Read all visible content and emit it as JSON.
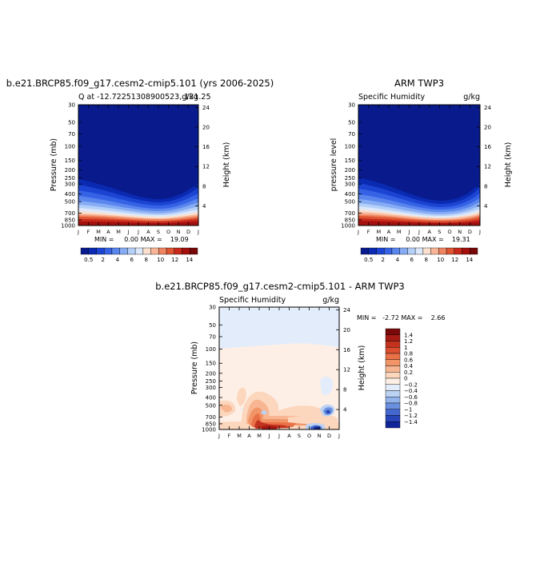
{
  "chart_data": [
    {
      "type": "heatmap",
      "title": "b.e21.BRCP85.f09_g17.cesm2-cmip5.101 (yrs 2006-2025)",
      "subtitle_left": "Q  at -12.72251308900523, 131.25",
      "subtitle_right": "g/kg",
      "ylabel_left": "Pressure (mb)",
      "ylabel_right": "Height (km)",
      "x_ticks": [
        "J",
        "F",
        "M",
        "A",
        "M",
        "J",
        "J",
        "A",
        "S",
        "O",
        "N",
        "D",
        "J"
      ],
      "y_ticks": [
        "30",
        "50",
        "70",
        "100",
        "150",
        "200",
        "250",
        "300",
        "400",
        "500",
        "700",
        "850",
        "1000"
      ],
      "height_ticks": [
        "24",
        "20",
        "16",
        "12",
        "8",
        "4"
      ],
      "min_max": "MIN =     0.00 MAX =    19.09",
      "min": 0.0,
      "max": 19.09,
      "colorbar_labels": [
        "0.5",
        "2",
        "4",
        "6",
        "8",
        "10",
        "12",
        "14"
      ],
      "colorbar_colors": [
        "#081a8c",
        "#0a2ab2",
        "#1c44d2",
        "#3663e6",
        "#5a86ee",
        "#86acf4",
        "#b4cff8",
        "#dde9fb",
        "#fbe0cf",
        "#f7b598",
        "#ef8661",
        "#e05532",
        "#c72a1c",
        "#a3100e",
        "#770707"
      ]
    },
    {
      "type": "heatmap",
      "title": "ARM TWP3",
      "subtitle_left": "Specific Humidity",
      "subtitle_right": "g/kg",
      "ylabel_left": "pressure level",
      "ylabel_right": "Height (km)",
      "x_ticks": [
        "J",
        "F",
        "M",
        "A",
        "M",
        "J",
        "J",
        "A",
        "S",
        "O",
        "N",
        "D",
        "J"
      ],
      "y_ticks": [
        "30",
        "50",
        "70",
        "100",
        "150",
        "200",
        "250",
        "300",
        "400",
        "500",
        "700",
        "850",
        "1000"
      ],
      "height_ticks": [
        "24",
        "20",
        "16",
        "12",
        "8",
        "4"
      ],
      "min_max": "MIN =     0.00 MAX =    19.31",
      "min": 0.0,
      "max": 19.31,
      "colorbar_labels": [
        "0.5",
        "2",
        "4",
        "6",
        "8",
        "10",
        "12",
        "14"
      ],
      "colorbar_colors": [
        "#081a8c",
        "#0a2ab2",
        "#1c44d2",
        "#3663e6",
        "#5a86ee",
        "#86acf4",
        "#b4cff8",
        "#dde9fb",
        "#fbe0cf",
        "#f7b598",
        "#ef8661",
        "#e05532",
        "#c72a1c",
        "#a3100e",
        "#770707"
      ]
    },
    {
      "type": "heatmap",
      "title": "b.e21.BRCP85.f09_g17.cesm2-cmip5.101 - ARM TWP3",
      "subtitle_left": "Specific Humidity",
      "subtitle_right": "g/kg",
      "ylabel_left": "Pressure (mb)",
      "ylabel_right": "Height (km)",
      "x_ticks": [
        "J",
        "F",
        "M",
        "A",
        "M",
        "J",
        "J",
        "A",
        "S",
        "O",
        "N",
        "D",
        "J"
      ],
      "y_ticks": [
        "30",
        "50",
        "70",
        "100",
        "150",
        "200",
        "250",
        "300",
        "400",
        "500",
        "700",
        "850",
        "1000"
      ],
      "height_ticks": [
        "24",
        "20",
        "16",
        "12",
        "8",
        "4"
      ],
      "min_max": "MIN =   -2.72 MAX =    2.66",
      "min": -2.72,
      "max": 2.66,
      "colorbar_labels": [
        "1.4",
        "1.2",
        "1",
        "0.8",
        "0.6",
        "0.4",
        "0.2",
        "0",
        "−0.2",
        "−0.4",
        "−0.6",
        "−0.8",
        "−1",
        "−1.2",
        "−1.4"
      ],
      "colorbar_colors": [
        "#7a0a0a",
        "#a51a14",
        "#c3321f",
        "#d94f2f",
        "#e97148",
        "#f19468",
        "#f7b591",
        "#fcd6bd",
        "#fdefe5",
        "#e3ecfa",
        "#bcd2f3",
        "#93b4ea",
        "#6b90df",
        "#4468cf",
        "#2845b8",
        "#102599"
      ]
    }
  ]
}
